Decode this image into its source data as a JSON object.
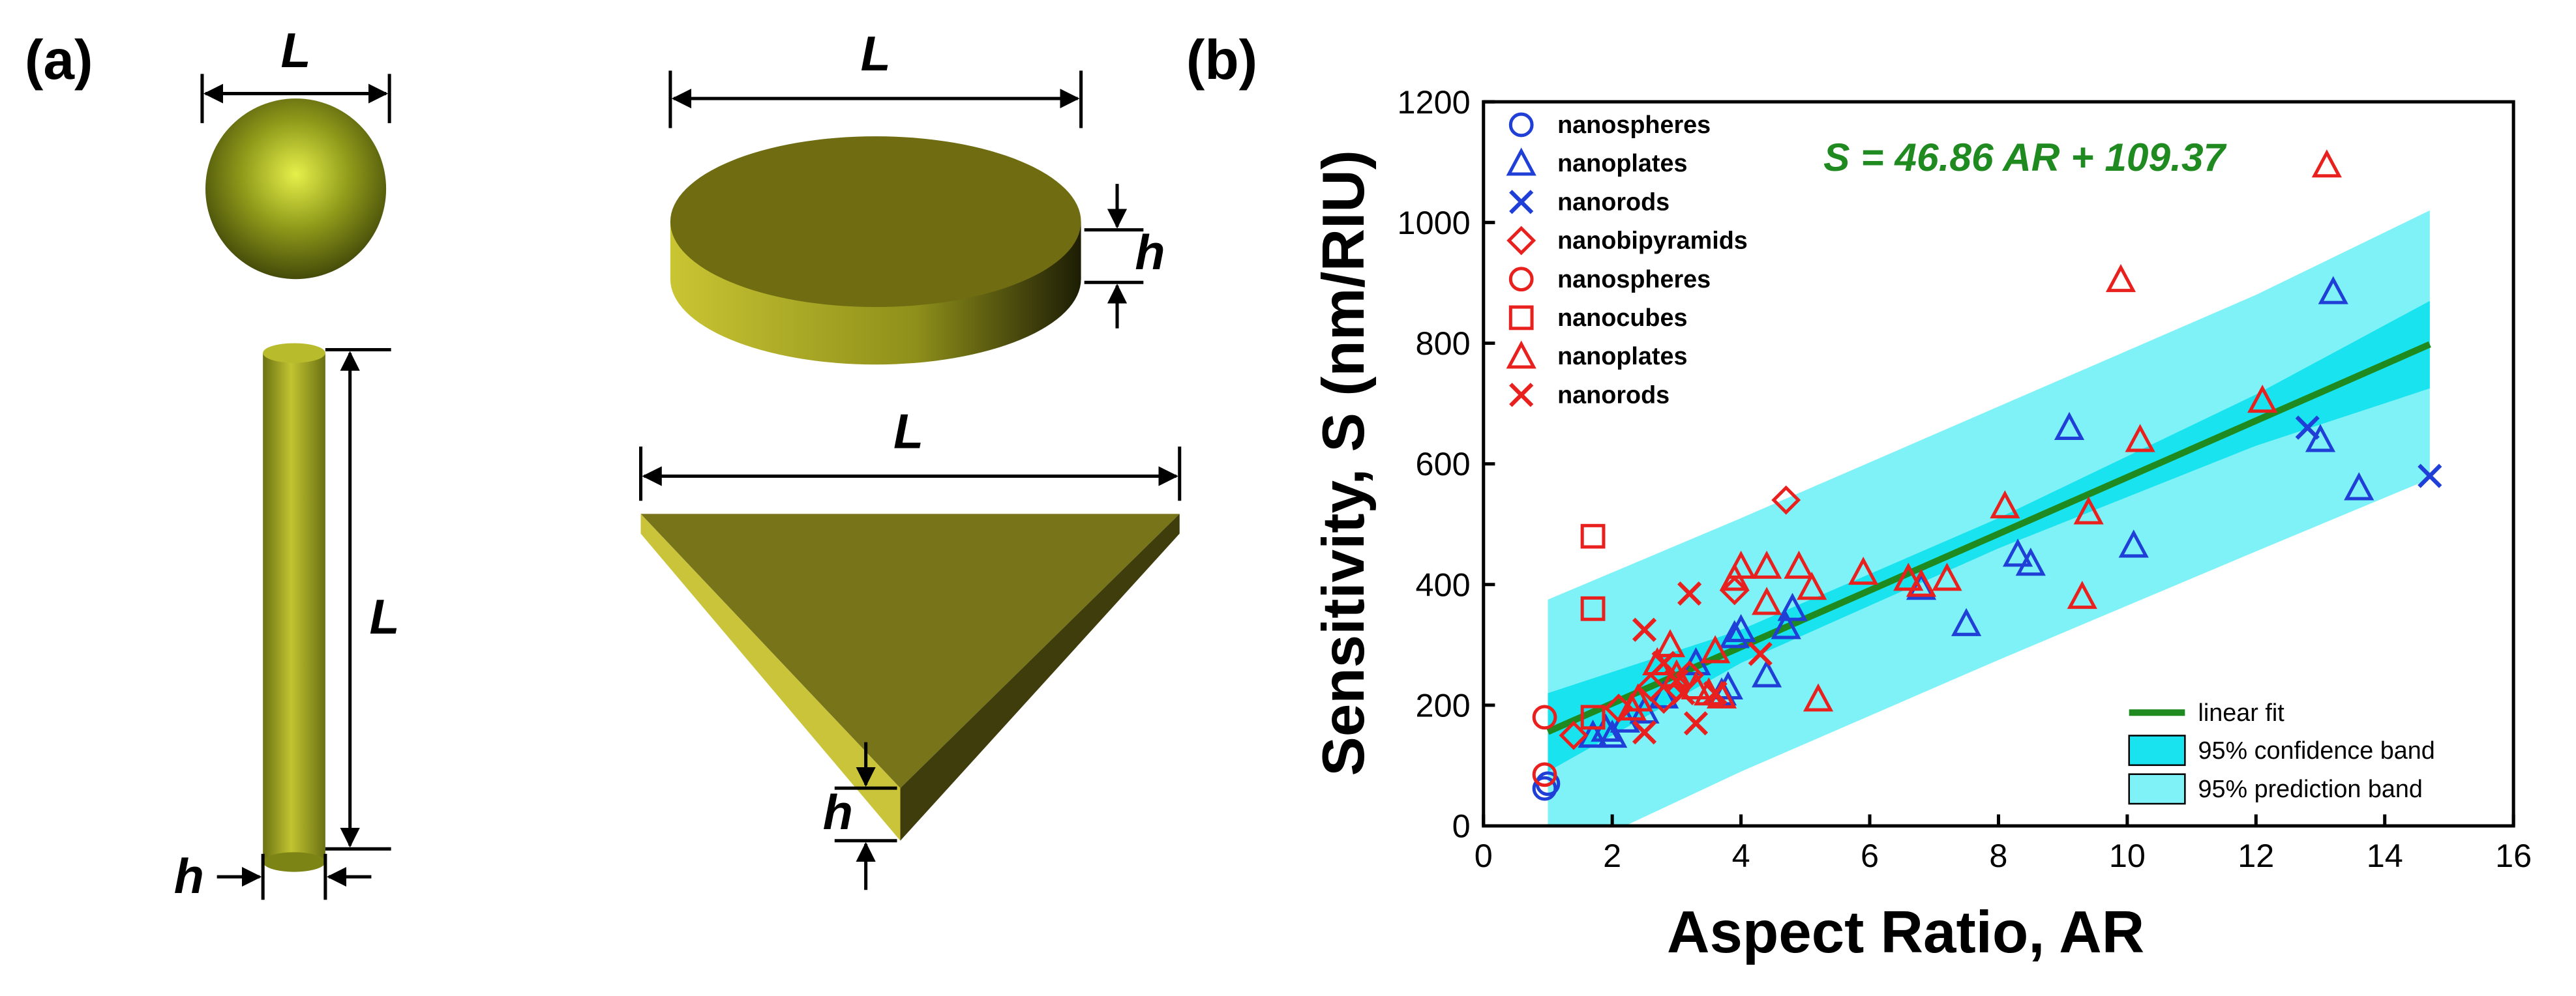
{
  "panels": [
    "(a)",
    "(b)"
  ],
  "diagram": {
    "labels": [
      "L",
      "L",
      "L",
      "L",
      "h",
      "h",
      "h"
    ]
  },
  "chart_data": {
    "type": "scatter",
    "xlabel": "Aspect Ratio, AR",
    "ylabel": "Sensitivity, S (nm/RIU)",
    "annotation": "S = 46.86 AR + 109.37",
    "annotation_color": "#1f8a1f",
    "xlim": [
      0,
      16
    ],
    "xticks": [
      0,
      2,
      4,
      6,
      8,
      10,
      12,
      14,
      16
    ],
    "ylim": [
      0,
      1200
    ],
    "yticks": [
      0,
      200,
      400,
      600,
      800,
      1000,
      1200
    ],
    "series": [
      {
        "name": "nanospheres",
        "color": "#1f3fd6",
        "marker": "circle",
        "x": [
          0.95,
          1.0
        ],
        "values": [
          62,
          70
        ]
      },
      {
        "name": "nanoplates",
        "color": "#1f3fd6",
        "marker": "triangle",
        "x": [
          13.2,
          9.1,
          13.0,
          13.6,
          10.1,
          8.3,
          8.5,
          6.8,
          7.5,
          4.8,
          4.7,
          4.4,
          4.0,
          3.9,
          3.3,
          3.8,
          3.7,
          2.5,
          2.2,
          1.9,
          1.7,
          2.0,
          2.8
        ],
        "values": [
          885,
          660,
          640,
          560,
          465,
          450,
          435,
          395,
          335,
          360,
          330,
          250,
          325,
          315,
          270,
          230,
          220,
          190,
          175,
          160,
          150,
          150,
          215
        ]
      },
      {
        "name": "nanorods",
        "color": "#1f3fd6",
        "marker": "x",
        "x": [
          12.8,
          14.7
        ],
        "values": [
          660,
          580
        ]
      },
      {
        "name": "nanobipyramids",
        "color": "#e8211e",
        "marker": "diamond",
        "x": [
          4.7,
          3.9,
          3.2,
          2.8,
          2.1,
          1.4,
          2.6
        ],
        "values": [
          540,
          390,
          250,
          210,
          195,
          150,
          230
        ]
      },
      {
        "name": "nanospheres",
        "color": "#e8211e",
        "marker": "circle",
        "x": [
          0.95,
          0.95
        ],
        "values": [
          180,
          85
        ]
      },
      {
        "name": "nanocubes",
        "color": "#e8211e",
        "marker": "square",
        "x": [
          1.7,
          1.7,
          1.7
        ],
        "values": [
          480,
          360,
          180
        ]
      },
      {
        "name": "nanoplates",
        "color": "#e8211e",
        "marker": "triangle",
        "x": [
          13.1,
          9.9,
          12.1,
          10.2,
          8.1,
          9.4,
          9.3,
          7.2,
          6.6,
          6.8,
          5.9,
          5.1,
          4.9,
          4.4,
          4.0,
          3.9,
          4.4,
          5.2,
          3.6,
          3.3,
          3.5,
          3.0,
          2.9,
          2.7,
          2.4,
          2.3,
          3.7
        ],
        "values": [
          1095,
          905,
          705,
          640,
          530,
          520,
          380,
          410,
          410,
          400,
          420,
          395,
          430,
          430,
          430,
          410,
          370,
          210,
          290,
          230,
          220,
          250,
          300,
          270,
          210,
          195,
          215
        ]
      },
      {
        "name": "nanorods",
        "color": "#e8211e",
        "marker": "x",
        "x": [
          3.2,
          2.5,
          4.3,
          2.8,
          3.0,
          3.1,
          2.5,
          3.3,
          3.6
        ],
        "values": [
          385,
          325,
          285,
          270,
          240,
          220,
          155,
          170,
          220
        ]
      }
    ],
    "fit": {
      "name": "linear fit",
      "color": "#1f8a1f",
      "x": [
        1.0,
        14.7
      ],
      "values": [
        156,
        798
      ]
    },
    "bands": [
      {
        "name": "95% prediction band",
        "color": "#7ff2f7",
        "x": [
          1,
          4,
          8,
          12,
          14.7
        ],
        "lower": [
          -60,
          90,
          275,
          455,
          575
        ],
        "upper": [
          375,
          510,
          695,
          880,
          1020
        ]
      },
      {
        "name": "95% confidence band",
        "color": "#19e3ee",
        "x": [
          1,
          4,
          8,
          12,
          14.7
        ],
        "lower": [
          90,
          270,
          460,
          630,
          725
        ],
        "upper": [
          220,
          325,
          510,
          715,
          870
        ]
      }
    ]
  }
}
